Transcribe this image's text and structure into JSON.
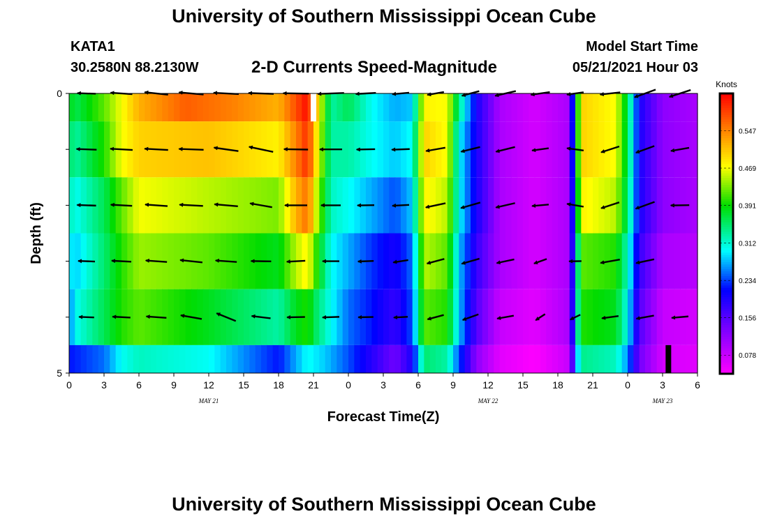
{
  "header": {
    "title": "University of Southern Mississippi Ocean Cube",
    "footer_title": "University of Southern Mississippi Ocean Cube",
    "station_id": "KATA1",
    "coordinates": "30.2580N  88.2130W",
    "chart_title": "2-D Currents Speed-Magnitude",
    "model_start_label": "Model Start Time",
    "model_start_value": "05/21/2021 Hour 03"
  },
  "chart_data": {
    "type": "heatmap",
    "title": "2-D Currents Speed-Magnitude",
    "xlabel": "Forecast Time(Z)",
    "ylabel": "Depth (ft)",
    "x_range_hours": [
      0,
      54
    ],
    "y_range": [
      0,
      5
    ],
    "y_ticks": [
      0,
      1,
      2,
      3,
      4,
      5
    ],
    "y_tick_labels": [
      "0",
      "",
      "",
      "",
      "",
      "5"
    ],
    "x_tick_hours": [
      0,
      3,
      6,
      9,
      12,
      15,
      18,
      21,
      24,
      27,
      30,
      33,
      36,
      39,
      42,
      45,
      48,
      51,
      54
    ],
    "x_tick_labels": [
      "0",
      "3",
      "6",
      "9",
      "12",
      "15",
      "18",
      "21",
      "0",
      "3",
      "6",
      "9",
      "12",
      "15",
      "18",
      "21",
      "0",
      "3",
      "6"
    ],
    "date_labels": [
      {
        "hour": 12,
        "text": "MAY 21"
      },
      {
        "hour": 36,
        "text": "MAY 22"
      },
      {
        "hour": 51,
        "text": "MAY 23"
      }
    ],
    "colorbar": {
      "unit": "Knots",
      "min": 0.039,
      "max": 0.625,
      "ticks": [
        0.078,
        0.156,
        0.234,
        0.312,
        0.391,
        0.469,
        0.547
      ],
      "tick_labels": [
        "0.078",
        "0.156",
        "0.234",
        "0.312",
        "0.391",
        "0.469",
        "0.547"
      ]
    },
    "depth_layers": [
      {
        "y_top": 0,
        "y_bottom": 0.5,
        "keys": [
          [
            0,
            0.39
          ],
          [
            0.5,
            0.36
          ],
          [
            3,
            0.42
          ],
          [
            4.5,
            0.47
          ],
          [
            6,
            0.52
          ],
          [
            10,
            0.57
          ],
          [
            14,
            0.55
          ],
          [
            18,
            0.52
          ],
          [
            19.5,
            0.58
          ],
          [
            20.5,
            0.62
          ],
          [
            21.3,
            0.5
          ],
          [
            22.5,
            0.33
          ],
          [
            24,
            0.36
          ],
          [
            26,
            0.3
          ],
          [
            28,
            0.27
          ],
          [
            29.5,
            0.28
          ],
          [
            30.5,
            0.48
          ],
          [
            32.5,
            0.47
          ],
          [
            33.5,
            0.34
          ],
          [
            35,
            0.2
          ],
          [
            37,
            0.1
          ],
          [
            40,
            0.07
          ],
          [
            43,
            0.1
          ],
          [
            43.5,
            0.32
          ],
          [
            44,
            0.5
          ],
          [
            47,
            0.47
          ],
          [
            48,
            0.36
          ],
          [
            49,
            0.2
          ],
          [
            51,
            0.12
          ],
          [
            54,
            0.1
          ]
        ]
      },
      {
        "y_top": 0.5,
        "y_bottom": 1.5,
        "keys": [
          [
            0,
            0.36
          ],
          [
            0.5,
            0.33
          ],
          [
            3,
            0.4
          ],
          [
            4.5,
            0.47
          ],
          [
            6,
            0.5
          ],
          [
            12,
            0.51
          ],
          [
            18,
            0.48
          ],
          [
            19.5,
            0.55
          ],
          [
            20.5,
            0.6
          ],
          [
            21.3,
            0.48
          ],
          [
            22.5,
            0.33
          ],
          [
            24,
            0.33
          ],
          [
            26,
            0.3
          ],
          [
            28,
            0.28
          ],
          [
            29.5,
            0.3
          ],
          [
            30.5,
            0.5
          ],
          [
            32.5,
            0.47
          ],
          [
            33.5,
            0.3
          ],
          [
            35,
            0.2
          ],
          [
            37,
            0.1
          ],
          [
            40,
            0.07
          ],
          [
            43,
            0.1
          ],
          [
            43.5,
            0.32
          ],
          [
            44,
            0.5
          ],
          [
            47,
            0.47
          ],
          [
            48,
            0.36
          ],
          [
            49,
            0.2
          ],
          [
            51,
            0.12
          ],
          [
            54,
            0.1
          ]
        ]
      },
      {
        "y_top": 1.5,
        "y_bottom": 2.5,
        "keys": [
          [
            0,
            0.33
          ],
          [
            0.5,
            0.3
          ],
          [
            3,
            0.36
          ],
          [
            4.5,
            0.42
          ],
          [
            6,
            0.47
          ],
          [
            12,
            0.45
          ],
          [
            18,
            0.43
          ],
          [
            19.5,
            0.52
          ],
          [
            20.5,
            0.56
          ],
          [
            21.3,
            0.45
          ],
          [
            22.5,
            0.32
          ],
          [
            24,
            0.3
          ],
          [
            26,
            0.27
          ],
          [
            28,
            0.24
          ],
          [
            29.5,
            0.28
          ],
          [
            30.5,
            0.48
          ],
          [
            32.5,
            0.45
          ],
          [
            33.5,
            0.3
          ],
          [
            35,
            0.2
          ],
          [
            37,
            0.1
          ],
          [
            40,
            0.07
          ],
          [
            43,
            0.1
          ],
          [
            43.5,
            0.3
          ],
          [
            44,
            0.48
          ],
          [
            47,
            0.45
          ],
          [
            48,
            0.35
          ],
          [
            49,
            0.2
          ],
          [
            51,
            0.12
          ],
          [
            54,
            0.1
          ]
        ]
      },
      {
        "y_top": 2.5,
        "y_bottom": 3.5,
        "keys": [
          [
            0,
            0.3
          ],
          [
            0.5,
            0.28
          ],
          [
            3,
            0.35
          ],
          [
            4.5,
            0.4
          ],
          [
            6,
            0.44
          ],
          [
            12,
            0.42
          ],
          [
            18,
            0.38
          ],
          [
            19.5,
            0.45
          ],
          [
            20.5,
            0.48
          ],
          [
            21.3,
            0.4
          ],
          [
            22.5,
            0.3
          ],
          [
            24,
            0.27
          ],
          [
            26,
            0.23
          ],
          [
            28,
            0.2
          ],
          [
            29.5,
            0.25
          ],
          [
            30.5,
            0.45
          ],
          [
            32.5,
            0.42
          ],
          [
            33.5,
            0.28
          ],
          [
            35,
            0.18
          ],
          [
            37,
            0.1
          ],
          [
            40,
            0.07
          ],
          [
            43,
            0.1
          ],
          [
            43.5,
            0.28
          ],
          [
            44,
            0.42
          ],
          [
            47,
            0.4
          ],
          [
            48,
            0.32
          ],
          [
            49,
            0.18
          ],
          [
            51,
            0.1
          ],
          [
            54,
            0.09
          ]
        ]
      },
      {
        "y_top": 3.5,
        "y_bottom": 4.5,
        "keys": [
          [
            0,
            0.25
          ],
          [
            0.5,
            0.3
          ],
          [
            3,
            0.36
          ],
          [
            4.5,
            0.4
          ],
          [
            6,
            0.42
          ],
          [
            12,
            0.38
          ],
          [
            18,
            0.33
          ],
          [
            19.5,
            0.38
          ],
          [
            20.5,
            0.4
          ],
          [
            21.3,
            0.35
          ],
          [
            22.5,
            0.3
          ],
          [
            24,
            0.25
          ],
          [
            26,
            0.22
          ],
          [
            28,
            0.18
          ],
          [
            29.5,
            0.24
          ],
          [
            30.5,
            0.42
          ],
          [
            32.5,
            0.4
          ],
          [
            33.5,
            0.28
          ],
          [
            35,
            0.16
          ],
          [
            37,
            0.08
          ],
          [
            40,
            0.06
          ],
          [
            43,
            0.1
          ],
          [
            43.5,
            0.28
          ],
          [
            44,
            0.4
          ],
          [
            47,
            0.38
          ],
          [
            48,
            0.3
          ],
          [
            49,
            0.16
          ],
          [
            51,
            0.08
          ],
          [
            54,
            0.07
          ]
        ]
      },
      {
        "y_top": 4.5,
        "y_bottom": 5,
        "keys": [
          [
            0,
            0.22
          ],
          [
            3,
            0.25
          ],
          [
            4.5,
            0.3
          ],
          [
            6,
            0.32
          ],
          [
            12,
            0.3
          ],
          [
            18,
            0.22
          ],
          [
            19.5,
            0.27
          ],
          [
            20.5,
            0.3
          ],
          [
            22,
            0.28
          ],
          [
            24,
            0.24
          ],
          [
            26,
            0.19
          ],
          [
            28,
            0.14
          ],
          [
            29.5,
            0.2
          ],
          [
            30.5,
            0.35
          ],
          [
            32.5,
            0.33
          ],
          [
            33.5,
            0.24
          ],
          [
            35,
            0.12
          ],
          [
            37,
            0.06
          ],
          [
            40,
            0.04
          ],
          [
            43,
            0.08
          ],
          [
            43.5,
            0.24
          ],
          [
            44,
            0.34
          ],
          [
            47,
            0.32
          ],
          [
            48,
            0.26
          ],
          [
            49,
            0.14
          ],
          [
            51,
            0.07
          ],
          [
            54,
            0.06
          ]
        ]
      }
    ],
    "missing_markers": [
      {
        "hour": 21,
        "y_top": 0,
        "y_bottom": 0.5,
        "color": "#ffffff"
      },
      {
        "hour": 51.5,
        "y_top": 4.5,
        "y_bottom": 5,
        "color": "#000000"
      }
    ],
    "vector_depths": [
      0,
      1,
      2,
      3,
      4
    ],
    "vector_hours": [
      1.5,
      4.5,
      7.5,
      10.5,
      13.5,
      16.5,
      19.5,
      22.5,
      25.5,
      28.5,
      31.5,
      34.5,
      37.5,
      40.5,
      43.5,
      46.5,
      49.5,
      52.5
    ],
    "vectors": [
      [
        [
          178,
          0.33
        ],
        [
          176,
          0.39
        ],
        [
          174,
          0.42
        ],
        [
          175,
          0.44
        ],
        [
          177,
          0.45
        ],
        [
          178,
          0.45
        ],
        [
          179,
          0.46
        ],
        [
          182,
          0.47
        ],
        [
          183,
          0.36
        ],
        [
          185,
          0.3
        ],
        [
          190,
          0.3
        ],
        [
          195,
          0.32
        ],
        [
          193,
          0.38
        ],
        [
          188,
          0.34
        ],
        [
          188,
          0.3
        ],
        [
          186,
          0.36
        ],
        [
          200,
          0.4
        ],
        [
          198,
          0.4
        ]
      ],
      [
        [
          178,
          0.36
        ],
        [
          177,
          0.4
        ],
        [
          177,
          0.42
        ],
        [
          178,
          0.44
        ],
        [
          172,
          0.44
        ],
        [
          168,
          0.44
        ],
        [
          179,
          0.43
        ],
        [
          180,
          0.4
        ],
        [
          181,
          0.33
        ],
        [
          182,
          0.32
        ],
        [
          190,
          0.35
        ],
        [
          194,
          0.35
        ],
        [
          194,
          0.35
        ],
        [
          188,
          0.3
        ],
        [
          172,
          0.3
        ],
        [
          198,
          0.34
        ],
        [
          200,
          0.35
        ],
        [
          190,
          0.33
        ]
      ],
      [
        [
          178,
          0.34
        ],
        [
          177,
          0.38
        ],
        [
          176,
          0.4
        ],
        [
          177,
          0.42
        ],
        [
          175,
          0.42
        ],
        [
          170,
          0.4
        ],
        [
          180,
          0.4
        ],
        [
          180,
          0.35
        ],
        [
          181,
          0.3
        ],
        [
          183,
          0.3
        ],
        [
          192,
          0.36
        ],
        [
          196,
          0.36
        ],
        [
          193,
          0.35
        ],
        [
          185,
          0.3
        ],
        [
          170,
          0.3
        ],
        [
          198,
          0.34
        ],
        [
          200,
          0.36
        ],
        [
          181,
          0.33
        ]
      ],
      [
        [
          178,
          0.3
        ],
        [
          177,
          0.35
        ],
        [
          176,
          0.38
        ],
        [
          174,
          0.4
        ],
        [
          176,
          0.38
        ],
        [
          179,
          0.36
        ],
        [
          183,
          0.33
        ],
        [
          180,
          0.3
        ],
        [
          182,
          0.28
        ],
        [
          189,
          0.27
        ],
        [
          195,
          0.32
        ],
        [
          196,
          0.33
        ],
        [
          192,
          0.32
        ],
        [
          200,
          0.24
        ],
        [
          181,
          0.22
        ],
        [
          190,
          0.35
        ],
        [
          192,
          0.33
        ],
        null
      ],
      [
        [
          178,
          0.27
        ],
        [
          177,
          0.32
        ],
        [
          176,
          0.36
        ],
        [
          170,
          0.38
        ],
        [
          158,
          0.37
        ],
        [
          173,
          0.34
        ],
        [
          181,
          0.32
        ],
        [
          182,
          0.3
        ],
        [
          181,
          0.27
        ],
        [
          183,
          0.25
        ],
        [
          195,
          0.3
        ],
        [
          200,
          0.3
        ],
        [
          190,
          0.3
        ],
        [
          213,
          0.2
        ],
        [
          206,
          0.2
        ],
        [
          188,
          0.3
        ],
        [
          190,
          0.32
        ],
        [
          185,
          0.3
        ]
      ]
    ]
  }
}
